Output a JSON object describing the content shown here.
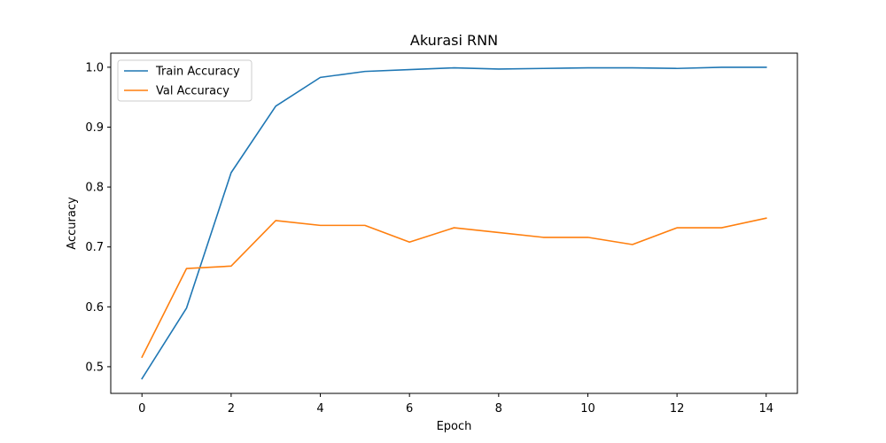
{
  "chart_data": {
    "type": "line",
    "title": "Akurasi RNN",
    "xlabel": "Epoch",
    "ylabel": "Accuracy",
    "xlim": [
      -0.7,
      14.7
    ],
    "ylim": [
      0.4555,
      1.0235
    ],
    "x_ticks": [
      0,
      2,
      4,
      6,
      8,
      10,
      12,
      14
    ],
    "y_ticks": [
      0.5,
      0.6,
      0.7,
      0.8,
      0.9,
      1.0
    ],
    "x_tick_labels": [
      "0",
      "2",
      "4",
      "6",
      "8",
      "10",
      "12",
      "14"
    ],
    "y_tick_labels": [
      "0.5",
      "0.6",
      "0.7",
      "0.8",
      "0.9",
      "1.0"
    ],
    "grid": false,
    "legend_position": "top-left",
    "x": [
      0,
      1,
      2,
      3,
      4,
      5,
      6,
      7,
      8,
      9,
      10,
      11,
      12,
      13,
      14
    ],
    "series": [
      {
        "name": "Train Accuracy",
        "color": "#1f77b4",
        "values": [
          0.48,
          0.598,
          0.824,
          0.935,
          0.983,
          0.993,
          0.996,
          0.999,
          0.997,
          0.998,
          0.999,
          0.999,
          0.998,
          1.0,
          1.0
        ]
      },
      {
        "name": "Val Accuracy",
        "color": "#ff7f0e",
        "values": [
          0.516,
          0.664,
          0.668,
          0.744,
          0.736,
          0.736,
          0.708,
          0.732,
          0.724,
          0.716,
          0.716,
          0.704,
          0.732,
          0.732,
          0.748
        ]
      }
    ]
  }
}
